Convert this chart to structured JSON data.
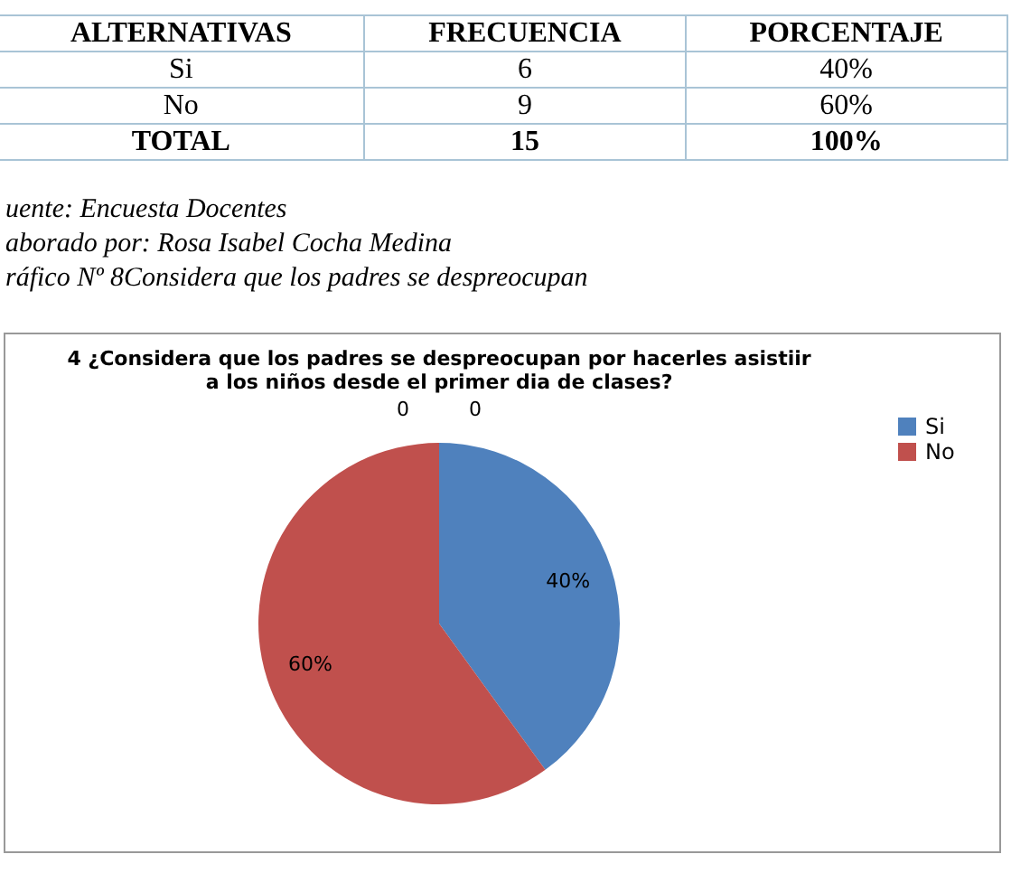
{
  "chart_data": {
    "type": "pie",
    "title": "4 ¿Considera  que  los padres se  despreocupan  por  hacerles   asistiir a  los  niños  desde  el primer  dia  de  clases?",
    "categories": [
      "Si",
      "No"
    ],
    "values": [
      40,
      60
    ],
    "colors": [
      "#4f81bd",
      "#c0504d"
    ],
    "value_labels": [
      "40%",
      "60%"
    ],
    "legend": "right",
    "annotations": [
      "ALTERNATIVAS",
      "FRECUENCIA",
      "PORCENTAJE",
      "Si",
      "6",
      "40%",
      "No",
      "9",
      "60%",
      "TOTAL",
      "15",
      "100%",
      "uente: Encuesta Docentes",
      "aborado  por: Rosa  Isabel  Cocha  Medina",
      "ráfico Nº 8Considera que los padres se despreocupan",
      "0",
      "0"
    ]
  }
}
